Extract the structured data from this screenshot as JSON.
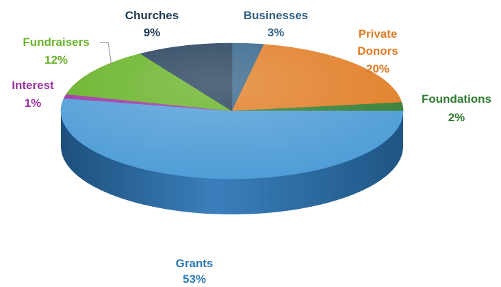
{
  "chart_data": {
    "type": "pie",
    "style": "3d",
    "title": "",
    "slices": [
      {
        "category": "Businesses",
        "value": 3,
        "label": "3%",
        "color": "#2e5f86",
        "label_color": "#2f5f86"
      },
      {
        "category": "Private Donors",
        "value": 20,
        "label": "20%",
        "color": "#e07a20",
        "label_color": "#e07a20"
      },
      {
        "category": "Foundations",
        "value": 2,
        "label": "2%",
        "color": "#2f7a2f",
        "label_color": "#2e7b2e"
      },
      {
        "category": "Grants",
        "value": 53,
        "label": "53%",
        "color": "#4a9ad6",
        "label_color": "#2a79b8"
      },
      {
        "category": "Interest",
        "value": 1,
        "label": "1%",
        "color": "#9b2fa2",
        "label_color": "#9b2fa2"
      },
      {
        "category": "Fundraisers",
        "value": 12,
        "label": "12%",
        "color": "#62b020",
        "label_color": "#6bb22a"
      },
      {
        "category": "Churches",
        "value": 9,
        "label": "9%",
        "color": "#1e3a56",
        "label_color": "#1f3a56"
      }
    ]
  }
}
